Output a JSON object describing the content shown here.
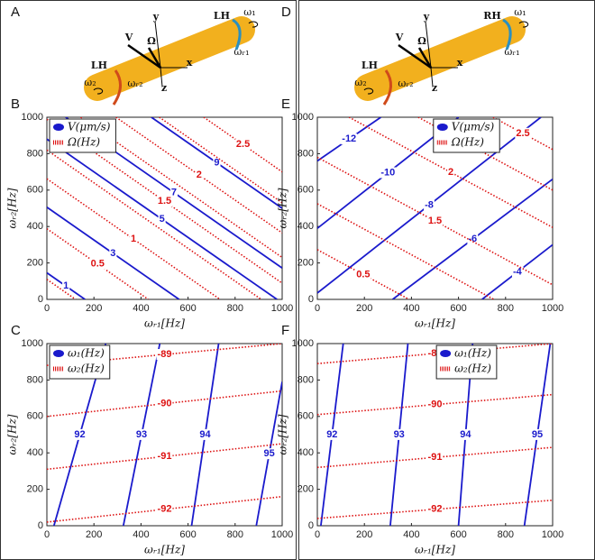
{
  "chart_data": [
    {
      "type": "contour",
      "panel": "B",
      "xlabel": "ωᵣ₁[Hz]",
      "ylabel": "ωᵣ₂[Hz]",
      "xlim": [
        0,
        1000
      ],
      "ylim": [
        0,
        1000
      ],
      "xticks": [
        0,
        200,
        400,
        600,
        800,
        1000
      ],
      "yticks": [
        0,
        200,
        400,
        600,
        800,
        1000
      ],
      "legend": "upper left",
      "series": [
        {
          "name": "V(μm/s)",
          "color": "#1a1acc",
          "dotted": false,
          "lines": [
            {
              "level": 1,
              "x": [
                0,
                162
              ],
              "y": [
                146,
                0
              ]
            },
            {
              "level": 3,
              "x": [
                0,
                562
              ],
              "y": [
                506,
                0
              ]
            },
            {
              "level": 5,
              "x": [
                0,
                978
              ],
              "y": [
                880,
                0
              ]
            },
            {
              "level": 7,
              "x": [
                80,
                1000
              ],
              "y": [
                1000,
                172
              ]
            },
            {
              "level": 9,
              "x": [
                444,
                1000
              ],
              "y": [
                1000,
                500
              ]
            }
          ]
        },
        {
          "name": "Ω(Hz)",
          "color": "#dd1111",
          "dotted": true,
          "lines": [
            {
              "level": null,
              "x": [
                0,
                122
              ],
              "y": [
                110,
                0
              ]
            },
            {
              "level": 0.5,
              "x": [
                0,
                431
              ],
              "y": [
                388,
                0
              ]
            },
            {
              "level": 1,
              "x": [
                0,
                736
              ],
              "y": [
                662,
                0
              ]
            },
            {
              "level": null,
              "x": [
                0,
                911
              ],
              "y": [
                820,
                0
              ]
            },
            {
              "level": 1.5,
              "x": [
                0,
                1000
              ],
              "y": [
                989,
                89
              ]
            },
            {
              "level": null,
              "x": [
                144,
                1000
              ],
              "y": [
                1000,
                230
              ]
            },
            {
              "level": 2,
              "x": [
                294,
                1000
              ],
              "y": [
                1000,
                365
              ]
            },
            {
              "level": null,
              "x": [
                478,
                1000
              ],
              "y": [
                1000,
                530
              ]
            },
            {
              "level": 2.5,
              "x": [
                667,
                1000
              ],
              "y": [
                1000,
                700
              ]
            }
          ]
        }
      ]
    },
    {
      "type": "contour",
      "panel": "C",
      "xlabel": "ωᵣ₁[Hz]",
      "ylabel": "ωᵣ₂[Hz]",
      "xlim": [
        0,
        1000
      ],
      "ylim": [
        0,
        1000
      ],
      "xticks": [
        0,
        200,
        400,
        600,
        800,
        1000
      ],
      "yticks": [
        0,
        200,
        400,
        600,
        800,
        1000
      ],
      "legend": "upper left",
      "series": [
        {
          "name": "ω₁(Hz)",
          "color": "#1a1acc",
          "dotted": false,
          "lines": [
            {
              "level": 92,
              "x": [
                30,
                250
              ],
              "y": [
                0,
                1000
              ]
            },
            {
              "level": 93,
              "x": [
                325,
                480
              ],
              "y": [
                0,
                1000
              ]
            },
            {
              "level": 94,
              "x": [
                615,
                730
              ],
              "y": [
                0,
                1000
              ]
            },
            {
              "level": 95,
              "x": [
                890,
                1000
              ],
              "y": [
                0,
                790
              ]
            }
          ]
        },
        {
          "name": "ω₂(Hz)",
          "color": "#dd1111",
          "dotted": true,
          "lines": [
            {
              "level": -89,
              "x": [
                0,
                1000
              ],
              "y": [
                880,
                1000
              ]
            },
            {
              "level": -90,
              "x": [
                0,
                1000
              ],
              "y": [
                600,
                740
              ]
            },
            {
              "level": -91,
              "x": [
                0,
                1000
              ],
              "y": [
                310,
                450
              ]
            },
            {
              "level": -92,
              "x": [
                0,
                1000
              ],
              "y": [
                20,
                160
              ]
            }
          ]
        }
      ]
    },
    {
      "type": "contour",
      "panel": "E",
      "xlabel": "ωᵣ₁[Hz]",
      "ylabel": "ωᵣ₂[Hz]",
      "xlim": [
        0,
        1000
      ],
      "ylim": [
        0,
        1000
      ],
      "xticks": [
        0,
        200,
        400,
        600,
        800,
        1000
      ],
      "yticks": [
        0,
        200,
        400,
        600,
        800,
        1000
      ],
      "legend": "upper center",
      "series": [
        {
          "name": "V(μm/s)",
          "color": "#1a1acc",
          "dotted": false,
          "lines": [
            {
              "level": -12,
              "x": [
                0,
                270
              ],
              "y": [
                760,
                1000
              ]
            },
            {
              "level": -10,
              "x": [
                0,
                600
              ],
              "y": [
                390,
                1000
              ]
            },
            {
              "level": -8,
              "x": [
                0,
                950
              ],
              "y": [
                35,
                1000
              ]
            },
            {
              "level": -6,
              "x": [
                320,
                1000
              ],
              "y": [
                0,
                660
              ]
            },
            {
              "level": -4,
              "x": [
                700,
                1000
              ],
              "y": [
                0,
                300
              ]
            }
          ]
        },
        {
          "name": "Ω(Hz)",
          "color": "#dd1111",
          "dotted": true,
          "lines": [
            {
              "level": 0.5,
              "x": [
                0,
                390
              ],
              "y": [
                273,
                0
              ]
            },
            {
              "level": null,
              "x": [
                0,
                750
              ],
              "y": [
                525,
                0
              ]
            },
            {
              "level": 1.5,
              "x": [
                0,
                1000
              ],
              "y": [
                780,
                80
              ]
            },
            {
              "level": 2,
              "x": [
                135,
                1000
              ],
              "y": [
                1000,
                395
              ]
            },
            {
              "level": null,
              "x": [
                429,
                1000
              ],
              "y": [
                1000,
                600
              ]
            },
            {
              "level": 2.5,
              "x": [
                747,
                1000
              ],
              "y": [
                1000,
                823
              ]
            }
          ]
        }
      ]
    },
    {
      "type": "contour",
      "panel": "F",
      "xlabel": "ωᵣ₁[Hz]",
      "ylabel": "ωᵣ₂[Hz]",
      "xlim": [
        0,
        1000
      ],
      "ylim": [
        0,
        1000
      ],
      "xticks": [
        0,
        200,
        400,
        600,
        800,
        1000
      ],
      "yticks": [
        0,
        200,
        400,
        600,
        800,
        1000
      ],
      "legend": "upper center",
      "series": [
        {
          "name": "ω₁(Hz)",
          "color": "#1a1acc",
          "dotted": false,
          "lines": [
            {
              "level": 92,
              "x": [
                15,
                110
              ],
              "y": [
                0,
                1000
              ]
            },
            {
              "level": 93,
              "x": [
                310,
                385
              ],
              "y": [
                0,
                1000
              ]
            },
            {
              "level": 94,
              "x": [
                600,
                660
              ],
              "y": [
                0,
                1000
              ]
            },
            {
              "level": 95,
              "x": [
                880,
                990
              ],
              "y": [
                0,
                1000
              ]
            }
          ]
        },
        {
          "name": "ω₂(Hz)",
          "color": "#dd1111",
          "dotted": true,
          "lines": [
            {
              "level": -89,
              "x": [
                0,
                1000
              ],
              "y": [
                890,
                1000
              ]
            },
            {
              "level": -90,
              "x": [
                0,
                1000
              ],
              "y": [
                610,
                720
              ]
            },
            {
              "level": -91,
              "x": [
                0,
                1000
              ],
              "y": [
                320,
                430
              ]
            },
            {
              "level": -92,
              "x": [
                0,
                1000
              ],
              "y": [
                40,
                140
              ]
            }
          ]
        }
      ]
    }
  ],
  "diagrams": [
    {
      "panel": "A",
      "labels": [
        "LH",
        "LH",
        "ω₁",
        "ωᵣ₁",
        "ω₂",
        "ωᵣ₂",
        "V",
        "Ω",
        "x",
        "y",
        "z"
      ]
    },
    {
      "panel": "D",
      "labels": [
        "RH",
        "LH",
        "ω₁",
        "ωᵣ₁",
        "ω₂",
        "ωᵣ₂",
        "V",
        "Ω",
        "x",
        "y",
        "z"
      ]
    }
  ]
}
